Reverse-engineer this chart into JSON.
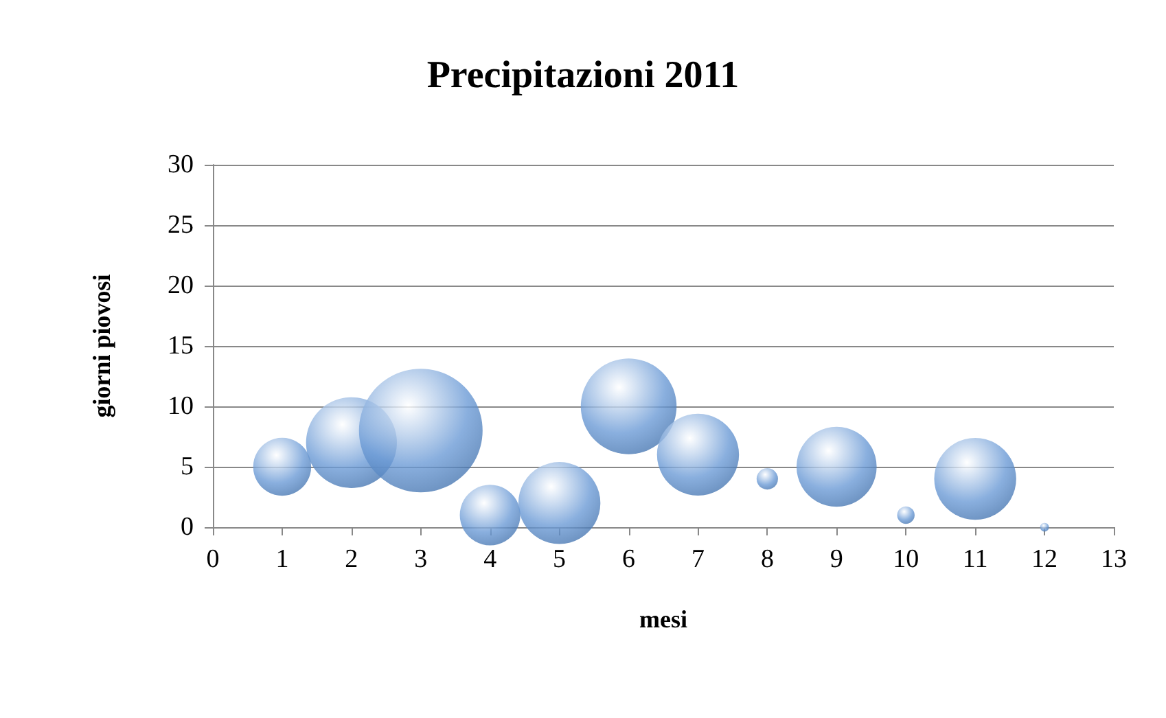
{
  "chart_data": {
    "type": "bubble",
    "title": "Precipitazioni 2011",
    "xlabel": "mesi",
    "ylabel": "giorni piovosi",
    "x": [
      1,
      2,
      3,
      4,
      5,
      6,
      7,
      8,
      9,
      10,
      11,
      12
    ],
    "series": [
      {
        "color": "#6c9bd6",
        "values": [
          5,
          7,
          8,
          1,
          2,
          10,
          6,
          4,
          5,
          1,
          4,
          0
        ],
        "sizes": [
          0.22,
          0.54,
          1,
          0.24,
          0.44,
          0.6,
          0.44,
          0.03,
          0.42,
          0.02,
          0.44,
          0.005
        ]
      }
    ],
    "xlim": [
      0,
      13
    ],
    "xticks": [
      0,
      1,
      2,
      3,
      4,
      5,
      6,
      7,
      8,
      9,
      10,
      11,
      12,
      13
    ],
    "ylim": [
      0,
      30
    ],
    "yticks": [
      0,
      5,
      10,
      15,
      20,
      25,
      30
    ],
    "grid": "y",
    "marker": "circle"
  }
}
